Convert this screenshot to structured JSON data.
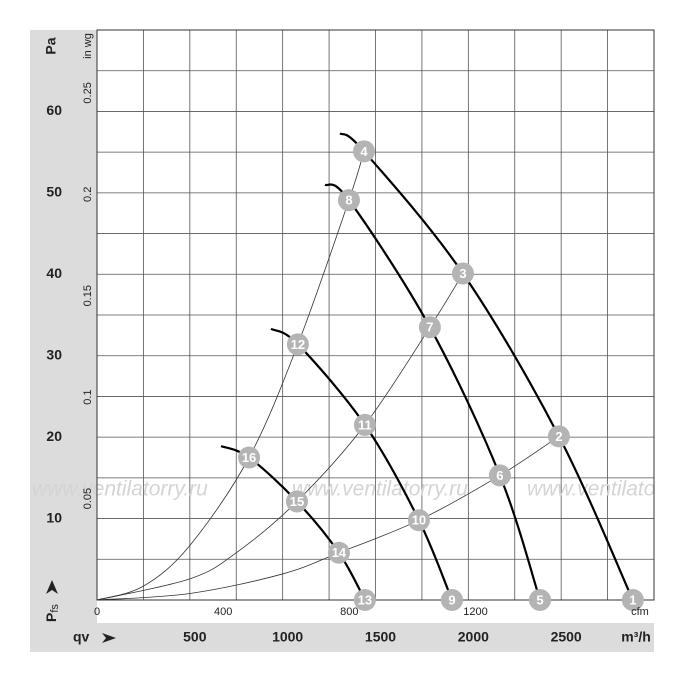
{
  "chart_data": {
    "type": "fan-curve",
    "y_label": "Pa",
    "y2_label": "in wg",
    "x_label": "qv",
    "x_unit": "m³/h",
    "x2_label": "cfm",
    "pressure_symbol": "P",
    "pressure_subscript": "fs",
    "watermark": "www.ventilatorry.ru",
    "xlim": [
      0,
      3000
    ],
    "xticks": [
      500,
      1000,
      1500,
      2000,
      2500
    ],
    "x_grid": [
      0,
      250,
      500,
      750,
      1000,
      1250,
      1500,
      1750,
      2000,
      2250,
      2500,
      2750,
      3000
    ],
    "ylim": [
      0,
      70
    ],
    "yticks": [
      10,
      20,
      30,
      40,
      50,
      60
    ],
    "y_grid": [
      0,
      5,
      10,
      15,
      20,
      25,
      30,
      35,
      40,
      45,
      50,
      55,
      60,
      65,
      70
    ],
    "y2lim": [
      0,
      0.281
    ],
    "y2ticks": [
      0.05,
      0.1,
      0.15,
      0.2,
      0.25
    ],
    "x2lim": [
      0,
      1766
    ],
    "x2ticks": [
      0,
      400,
      800,
      1200
    ],
    "series": [
      {
        "color": "#000000",
        "x": [
          1309,
          1438,
          1971,
          2488,
          2886
        ],
        "values": [
          57.3,
          55.1,
          40.1,
          20.1,
          0
        ]
      },
      {
        "color": "#000000",
        "x": [
          1228,
          1357,
          1793,
          2170,
          2386
        ],
        "values": [
          51,
          49.1,
          33.5,
          15.3,
          0
        ]
      },
      {
        "color": "#000000",
        "x": [
          937,
          1082,
          1443,
          1734,
          1912
        ],
        "values": [
          33.3,
          31.4,
          21.5,
          9.8,
          0
        ]
      },
      {
        "color": "#000000",
        "x": [
          668,
          819,
          1077,
          1303,
          1443
        ],
        "values": [
          18.9,
          17.5,
          12.1,
          5.8,
          0
        ]
      }
    ],
    "system_lines": [
      {
        "color": "#333333",
        "x": [
          0,
          250,
          500,
          819,
          1082,
          1357,
          1438
        ],
        "values": [
          0,
          1.7,
          6.7,
          17.5,
          31.4,
          49.1,
          55.1
        ]
      },
      {
        "color": "#333333",
        "x": [
          0,
          500,
          750,
          1077,
          1443,
          1793,
          1971
        ],
        "values": [
          0,
          2.6,
          5.8,
          12.1,
          21.5,
          33.5,
          40.1
        ]
      },
      {
        "color": "#333333",
        "x": [
          0,
          500,
          1000,
          1303,
          1734,
          2170,
          2488
        ],
        "values": [
          0,
          0.8,
          3.2,
          5.8,
          9.8,
          15.3,
          20.1
        ]
      }
    ],
    "point_color": "#b4b4b4",
    "point_labels": [
      1,
      2,
      3,
      4,
      5,
      6,
      7,
      8,
      9,
      10,
      11,
      12,
      13,
      14,
      15,
      16
    ],
    "point_x": [
      2886,
      2488,
      1971,
      1438,
      2386,
      2170,
      1793,
      1357,
      1912,
      1734,
      1443,
      1082,
      1443,
      1303,
      1077,
      819
    ],
    "point_y": [
      0,
      20.1,
      40.1,
      55.1,
      0,
      15.3,
      33.5,
      49.1,
      0,
      9.8,
      21.5,
      31.4,
      0,
      5.8,
      12.1,
      17.5
    ]
  }
}
